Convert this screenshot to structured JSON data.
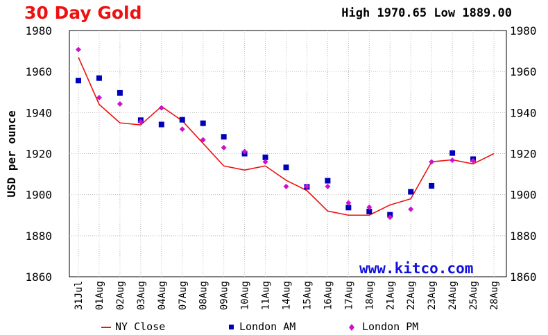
{
  "header": {
    "title": "30 Day Gold",
    "high_label": "High",
    "high_value": "1970.65",
    "low_label": "Low",
    "low_value": "1889.00",
    "watermark": "www.kitco.com"
  },
  "legend": {
    "ny_close": "NY Close",
    "london_am": "London AM",
    "london_pm": "London PM"
  },
  "colors": {
    "title": "#ee1111",
    "ny_close": "#ee1111",
    "london_am": "#0000bb",
    "london_pm": "#cc11cc",
    "watermark": "#1111dd",
    "grid": "#bbbbbb",
    "plot_bg": "#ffffff"
  },
  "chart_data": {
    "type": "line",
    "title": "30 Day Gold",
    "xlabel": "",
    "ylabel": "USD per ounce",
    "ylim": [
      1860,
      1980
    ],
    "yticks": [
      1860,
      1880,
      1900,
      1920,
      1940,
      1960,
      1980
    ],
    "grid": true,
    "legend_position": "bottom",
    "categories": [
      "31Jul",
      "01Aug",
      "02Aug",
      "03Aug",
      "04Aug",
      "07Aug",
      "08Aug",
      "09Aug",
      "10Aug",
      "11Aug",
      "14Aug",
      "15Aug",
      "16Aug",
      "17Aug",
      "18Aug",
      "21Aug",
      "22Aug",
      "23Aug",
      "24Aug",
      "25Aug",
      "28Aug"
    ],
    "series": [
      {
        "name": "NY Close",
        "kind": "line",
        "values": [
          1967,
          1944,
          1935,
          1934,
          1943,
          1936,
          1925,
          1914,
          1912,
          1914,
          1907,
          1902,
          1892,
          1890,
          1890,
          1895,
          1898,
          1916,
          1917,
          1915,
          1920
        ]
      },
      {
        "name": "London AM",
        "kind": "square",
        "values": [
          1955.6,
          1956.8,
          1949.6,
          1936.3,
          1934.2,
          1936.5,
          1934.8,
          1928.2,
          1920.0,
          1918.2,
          1913.3,
          1903.8,
          1906.8,
          1893.7,
          1891.8,
          1890.2,
          1901.4,
          1904.3,
          1920.3,
          1917.3,
          null
        ]
      },
      {
        "name": "London PM",
        "kind": "diamond",
        "values": [
          1970.7,
          1947.3,
          1944.2,
          1935.5,
          1942.3,
          1931.9,
          1926.7,
          1922.9,
          1921.0,
          1916.0,
          1904.0,
          1904.0,
          1904.0,
          1896.0,
          1893.9,
          1889.0,
          1892.9,
          1916.0,
          1916.8,
          1916.5,
          null
        ]
      }
    ]
  }
}
